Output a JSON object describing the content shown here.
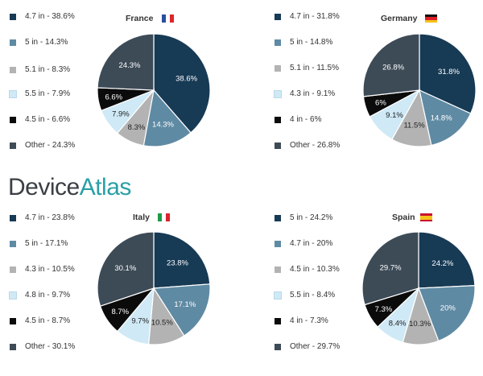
{
  "brand": {
    "logo_prefix": "Device",
    "logo_suffix": "Atlas",
    "accent_color": "#2a9fa6"
  },
  "colors": {
    "dark_navy": "#173a55",
    "steel_blue": "#5f8aa3",
    "light_gray": "#b3b3b3",
    "pale_blue": "#cfe9f6",
    "black": "#0b0b0b",
    "slate": "#3d4b57"
  },
  "chart_data": [
    {
      "type": "pie",
      "title": "France",
      "flag": [
        "#2a4f9f",
        "#ffffff",
        "#e0242c"
      ],
      "flag_orientation": "vertical",
      "legend_placement": "left",
      "slices": [
        {
          "label": "4.7 in - 38.6%",
          "value": 38.6,
          "data_label": "38.6%",
          "color": "#173a55",
          "text_color": "#ffffff"
        },
        {
          "label": "5 in - 14.3%",
          "value": 14.3,
          "data_label": "14.3%",
          "color": "#5f8aa3",
          "text_color": "#ffffff"
        },
        {
          "label": "5.1 in - 8.3%",
          "value": 8.3,
          "data_label": "8.3%",
          "color": "#b3b3b3",
          "text_color": "#222222"
        },
        {
          "label": "5.5 in - 7.9%",
          "value": 7.9,
          "data_label": "7.9%",
          "color": "#cfe9f6",
          "text_color": "#222222"
        },
        {
          "label": "4.5 in - 6.6%",
          "value": 6.6,
          "data_label": "6.6%",
          "color": "#0b0b0b",
          "text_color": "#ffffff"
        },
        {
          "label": "Other - 24.3%",
          "value": 24.3,
          "data_label": "24.3%",
          "color": "#3d4b57",
          "text_color": "#ffffff"
        }
      ]
    },
    {
      "type": "pie",
      "title": "Germany",
      "flag": [
        "#111111",
        "#dd1f26",
        "#f6c21a"
      ],
      "flag_orientation": "horizontal",
      "legend_placement": "left",
      "slices": [
        {
          "label": "4.7 in - 31.8%",
          "value": 31.8,
          "data_label": "31.8%",
          "color": "#173a55",
          "text_color": "#ffffff"
        },
        {
          "label": "5 in - 14.8%",
          "value": 14.8,
          "data_label": "14.8%",
          "color": "#5f8aa3",
          "text_color": "#ffffff"
        },
        {
          "label": "5.1 in - 11.5%",
          "value": 11.5,
          "data_label": "11.5%",
          "color": "#b3b3b3",
          "text_color": "#222222"
        },
        {
          "label": "4.3 in - 9.1%",
          "value": 9.1,
          "data_label": "9.1%",
          "color": "#cfe9f6",
          "text_color": "#222222"
        },
        {
          "label": "4 in - 6%",
          "value": 6,
          "data_label": "6%",
          "color": "#0b0b0b",
          "text_color": "#ffffff"
        },
        {
          "label": "Other - 26.8%",
          "value": 26.8,
          "data_label": "26.8%",
          "color": "#3d4b57",
          "text_color": "#ffffff"
        }
      ]
    },
    {
      "type": "pie",
      "title": "Italy",
      "flag": [
        "#1f9a48",
        "#ffffff",
        "#d9232e"
      ],
      "flag_orientation": "vertical",
      "legend_placement": "left",
      "slices": [
        {
          "label": "4.7 in - 23.8%",
          "value": 23.8,
          "data_label": "23.8%",
          "color": "#173a55",
          "text_color": "#ffffff"
        },
        {
          "label": "5 in - 17.1%",
          "value": 17.1,
          "data_label": "17.1%",
          "color": "#5f8aa3",
          "text_color": "#ffffff"
        },
        {
          "label": "4.3 in - 10.5%",
          "value": 10.5,
          "data_label": "10.5%",
          "color": "#b3b3b3",
          "text_color": "#222222"
        },
        {
          "label": "4.8 in - 9.7%",
          "value": 9.7,
          "data_label": "9.7%",
          "color": "#cfe9f6",
          "text_color": "#222222"
        },
        {
          "label": "4.5 in - 8.7%",
          "value": 8.7,
          "data_label": "8.7%",
          "color": "#0b0b0b",
          "text_color": "#ffffff"
        },
        {
          "label": "Other - 30.1%",
          "value": 30.1,
          "data_label": "30.1%",
          "color": "#3d4b57",
          "text_color": "#ffffff"
        }
      ]
    },
    {
      "type": "pie",
      "title": "Spain",
      "flag": [
        "#c8102e",
        "#f6c21a",
        "#c8102e"
      ],
      "flag_orientation": "horizontal",
      "legend_placement": "left",
      "slices": [
        {
          "label": "5 in - 24.2%",
          "value": 24.2,
          "data_label": "24.2%",
          "color": "#173a55",
          "text_color": "#ffffff"
        },
        {
          "label": "4.7 in - 20%",
          "value": 20,
          "data_label": "20%",
          "color": "#5f8aa3",
          "text_color": "#ffffff"
        },
        {
          "label": "4.5 in - 10.3%",
          "value": 10.3,
          "data_label": "10.3%",
          "color": "#b3b3b3",
          "text_color": "#222222"
        },
        {
          "label": "5.5 in - 8.4%",
          "value": 8.4,
          "data_label": "8.4%",
          "color": "#cfe9f6",
          "text_color": "#222222"
        },
        {
          "label": "4 in - 7.3%",
          "value": 7.3,
          "data_label": "7.3%",
          "color": "#0b0b0b",
          "text_color": "#ffffff"
        },
        {
          "label": "Other - 29.7%",
          "value": 29.7,
          "data_label": "29.7%",
          "color": "#3d4b57",
          "text_color": "#ffffff"
        }
      ]
    }
  ]
}
